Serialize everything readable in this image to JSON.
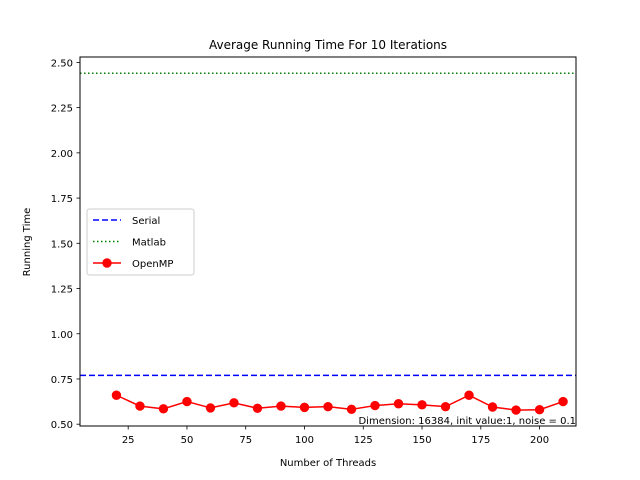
{
  "chart_data": {
    "type": "line",
    "title": "Average Running Time For 10 Iterations",
    "xlabel": "Number of Threads",
    "ylabel": "Running Time",
    "xlim": [
      4.5,
      215.5
    ],
    "ylim": [
      0.49,
      2.53
    ],
    "xticks": [
      25,
      50,
      75,
      100,
      125,
      150,
      175,
      200
    ],
    "yticks": [
      0.5,
      0.75,
      1.0,
      1.25,
      1.5,
      1.75,
      2.0,
      2.25,
      2.5
    ],
    "ytick_labels": [
      "0.50",
      "0.75",
      "1.00",
      "1.25",
      "1.50",
      "1.75",
      "2.00",
      "2.25",
      "2.50"
    ],
    "grid": false,
    "legend_position": "center-left",
    "series": [
      {
        "name": "Serial",
        "kind": "hline",
        "value": 0.77,
        "color": "#0000ff",
        "style": "dashed"
      },
      {
        "name": "Matlab",
        "kind": "hline",
        "value": 2.44,
        "color": "#008000",
        "style": "dotted"
      },
      {
        "name": "OpenMP",
        "kind": "line",
        "color": "#ff0000",
        "marker": "circle",
        "x": [
          20,
          30,
          40,
          50,
          60,
          70,
          80,
          90,
          100,
          110,
          120,
          130,
          140,
          150,
          160,
          170,
          180,
          190,
          200,
          210
        ],
        "y": [
          0.66,
          0.6,
          0.585,
          0.625,
          0.59,
          0.618,
          0.588,
          0.6,
          0.593,
          0.597,
          0.582,
          0.603,
          0.613,
          0.607,
          0.597,
          0.66,
          0.595,
          0.578,
          0.58,
          0.625
        ]
      }
    ],
    "annotation": "Dimension: 16384, init value:1, noise = 0.1"
  }
}
